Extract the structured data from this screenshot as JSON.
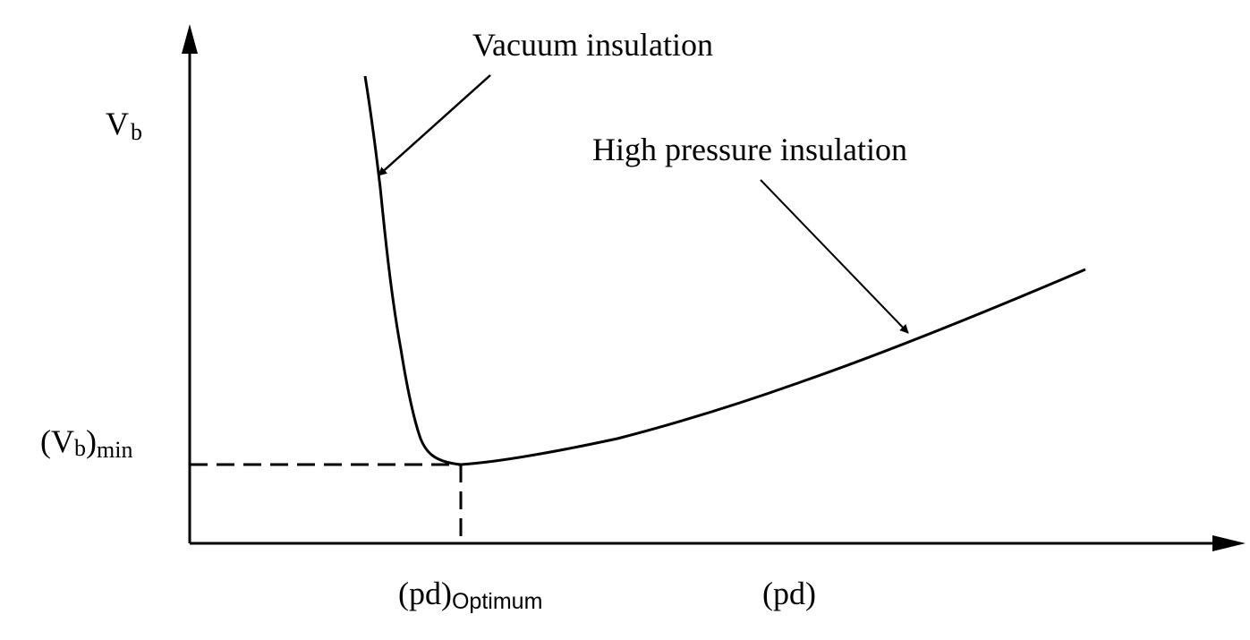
{
  "axes": {
    "y_label": "V",
    "y_label_sub": "b",
    "x_label": "(pd)"
  },
  "markers": {
    "vb_min_main": "(V",
    "vb_min_sub": "b",
    "vb_min_close": ")",
    "vb_min_suffix": "min",
    "pd_opt_main": "(pd)",
    "pd_opt_sub": "Optimum"
  },
  "annotations": {
    "vacuum": "Vacuum insulation",
    "high_pressure": "High pressure insulation"
  },
  "colors": {
    "ink": "#000000",
    "background": "#ffffff"
  }
}
